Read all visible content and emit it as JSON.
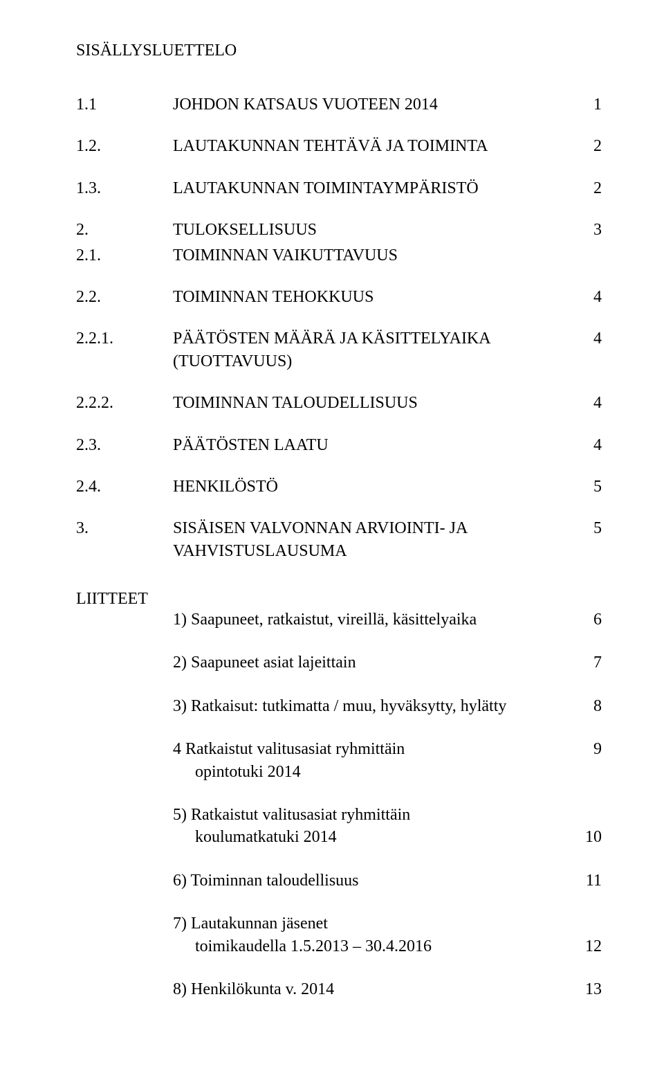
{
  "title": "SISÄLLYSLUETTELO",
  "toc": [
    {
      "num": "1.1",
      "label": "JOHDON KATSAUS VUOTEEN 2014",
      "page": "1",
      "tight": false
    },
    {
      "num": "1.2.",
      "label": "LAUTAKUNNAN TEHTÄVÄ JA TOIMINTA",
      "page": "2",
      "tight": false
    },
    {
      "num": "1.3.",
      "label": "LAUTAKUNNAN TOIMINTAYMPÄRISTÖ",
      "page": "2",
      "tight": false
    },
    {
      "num": "2.",
      "label": "TULOKSELLISUUS",
      "page": "3",
      "tight": true
    },
    {
      "num": "2.1.",
      "label": "TOIMINNAN VAIKUTTAVUUS",
      "page": "",
      "tight": false
    },
    {
      "num": "2.2.",
      "label": "TOIMINNAN TEHOKKUUS",
      "page": "4",
      "tight": false
    },
    {
      "num": "2.2.1.",
      "label": "PÄÄTÖSTEN MÄÄRÄ JA KÄSITTELYAIKA\n(TUOTTAVUUS)",
      "page": "4",
      "tight": false,
      "multiline": true
    },
    {
      "num": "2.2.2.",
      "label": "TOIMINNAN TALOUDELLISUUS",
      "page": "4",
      "tight": false
    },
    {
      "num": "2.3.",
      "label": "PÄÄTÖSTEN LAATU",
      "page": "4",
      "tight": false
    },
    {
      "num": "2.4.",
      "label": "HENKILÖSTÖ",
      "page": "5",
      "tight": false
    },
    {
      "num": "3.",
      "label": "SISÄISEN VALVONNAN ARVIOINTI- JA\nVAHVISTUSLAUSUMA",
      "page": "5",
      "tight": false,
      "multiline": true
    }
  ],
  "liitteet": {
    "heading": "LIITTEET",
    "items": [
      {
        "lines": [
          {
            "label": "1) Saapuneet, ratkaistut, vireillä, käsittelyaika",
            "page": "6",
            "sub": false
          }
        ]
      },
      {
        "lines": [
          {
            "label": "2) Saapuneet asiat lajeittain",
            "page": "7",
            "sub": false
          }
        ]
      },
      {
        "lines": [
          {
            "label": "3) Ratkaisut: tutkimatta / muu, hyväksytty, hylätty",
            "page": "8",
            "sub": false
          }
        ]
      },
      {
        "lines": [
          {
            "label": "4 Ratkaistut valitusasiat ryhmittäin",
            "page": "9",
            "sub": false
          },
          {
            "label": "opintotuki 2014",
            "page": "",
            "sub": true
          }
        ]
      },
      {
        "lines": [
          {
            "label": "5) Ratkaistut valitusasiat ryhmittäin",
            "page": "",
            "sub": false
          },
          {
            "label": "koulumatkatuki 2014",
            "page": "10",
            "sub": true
          }
        ]
      },
      {
        "lines": [
          {
            "label": "6) Toiminnan taloudellisuus",
            "page": "11",
            "sub": false
          }
        ]
      },
      {
        "lines": [
          {
            "label": "7) Lautakunnan jäsenet",
            "page": "",
            "sub": false
          },
          {
            "label": "toimikaudella 1.5.2013 – 30.4.2016",
            "page": "12",
            "sub": true
          }
        ]
      },
      {
        "lines": [
          {
            "label": "8) Henkilökunta v. 2014",
            "page": "13",
            "sub": false
          }
        ]
      }
    ]
  }
}
